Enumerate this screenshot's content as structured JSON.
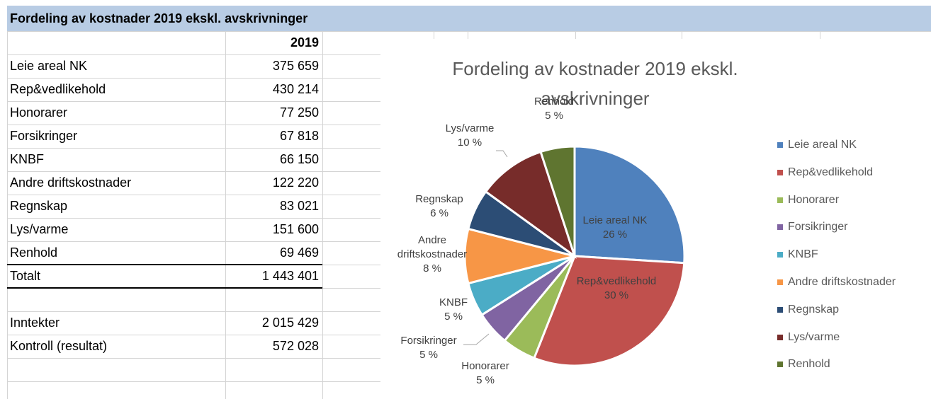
{
  "header": {
    "title": "Fordeling av kostnader 2019 ekskl. avskrivninger"
  },
  "table": {
    "column_header": "2019",
    "rows": [
      [
        "Leie areal NK",
        "375 659"
      ],
      [
        "Rep&vedlikehold",
        "430 214"
      ],
      [
        "Honorarer",
        "77 250"
      ],
      [
        "Forsikringer",
        "67 818"
      ],
      [
        "KNBF",
        "66 150"
      ],
      [
        "Andre driftskostnader",
        "122 220"
      ],
      [
        "Regnskap",
        "83 021"
      ],
      [
        "Lys/varme",
        "151 600"
      ],
      [
        "Renhold",
        "69 469"
      ],
      [
        "Totalt",
        "1 443 401"
      ],
      [
        "Inntekter",
        "2 015 429"
      ],
      [
        "Kontroll (resultat)",
        "572 028"
      ]
    ]
  },
  "chart_data": {
    "type": "pie",
    "title": "Fordeling av kostnader 2019 ekskl. avskrivninger",
    "categories": [
      "Leie areal NK",
      "Rep&vedlikehold",
      "Honorarer",
      "Forsikringer",
      "KNBF",
      "Andre driftskostnader",
      "Regnskap",
      "Lys/varme",
      "Renhold"
    ],
    "values": [
      26,
      30,
      5,
      5,
      5,
      8,
      6,
      10,
      5
    ],
    "value_labels": [
      "26 %",
      "30 %",
      "5 %",
      "5 %",
      "5 %",
      "8 %",
      "6 %",
      "10 %",
      "5 %"
    ],
    "colors": [
      "#4f81bd",
      "#c0504d",
      "#9bbb59",
      "#8064a2",
      "#4bacc6",
      "#f79646",
      "#2c4d75",
      "#772c2a",
      "#5f7530"
    ],
    "legend": "right"
  }
}
